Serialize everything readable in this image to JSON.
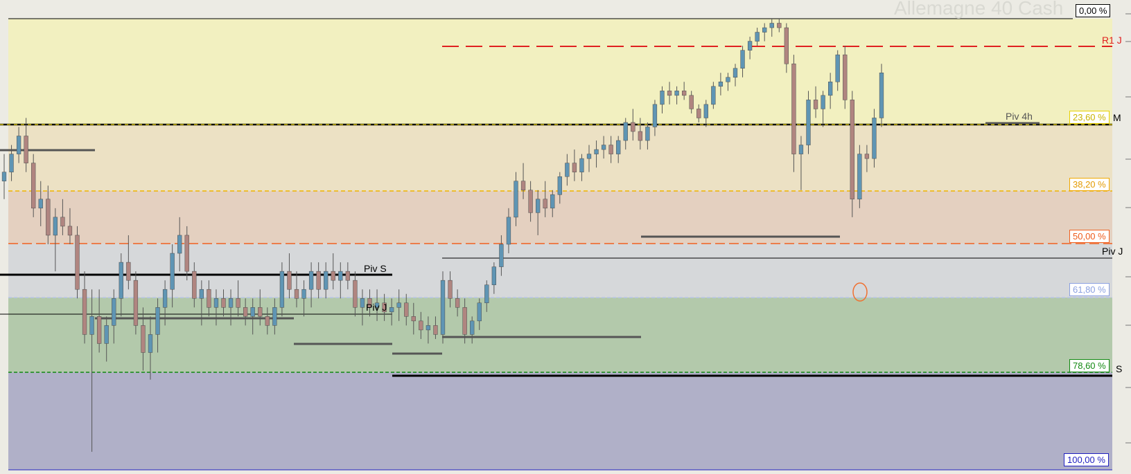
{
  "title": "Allemagne 40 Cash",
  "fib_levels": [
    {
      "label": "0,00 %",
      "color": "#000000"
    },
    {
      "label": "23,60 %",
      "color": "#e8d000"
    },
    {
      "label": "38,20 %",
      "color": "#f0a800"
    },
    {
      "label": "50,00 %",
      "color": "#f06020"
    },
    {
      "label": "61,80 %",
      "color": "#8aa0e0"
    },
    {
      "label": "78,60 %",
      "color": "#118811"
    },
    {
      "label": "100,00 %",
      "color": "#2020c0"
    }
  ],
  "pivot_labels": {
    "r1j": "R1 J",
    "m": "M",
    "piv4h": "Piv 4h",
    "pivj_right": "Piv J",
    "s": "S",
    "pivs": "Piv S",
    "pivj_left": "Piv J"
  },
  "colors": {
    "zone_0_23": "#f2f0c0",
    "zone_23_38": "#ece1c4",
    "zone_38_50": "#e4d0c0",
    "zone_50_61": "#d6d8da",
    "zone_61_78": "#b3c9ab",
    "zone_78_100": "#b0b0c8",
    "bull": "#5f95b4",
    "bear": "#b08580",
    "r1_line": "#e02020",
    "highlight": "#f07030"
  },
  "chart_data": {
    "type": "candlestick",
    "title": "Allemagne 40 Cash",
    "candles": [
      [
        0.64,
        0.7,
        0.6,
        0.66
      ],
      [
        0.66,
        0.72,
        0.64,
        0.7
      ],
      [
        0.7,
        0.76,
        0.68,
        0.74
      ],
      [
        0.74,
        0.78,
        0.66,
        0.68
      ],
      [
        0.68,
        0.7,
        0.56,
        0.58
      ],
      [
        0.58,
        0.64,
        0.54,
        0.6
      ],
      [
        0.6,
        0.63,
        0.5,
        0.52
      ],
      [
        0.52,
        0.58,
        0.44,
        0.56
      ],
      [
        0.56,
        0.6,
        0.52,
        0.54
      ],
      [
        0.54,
        0.58,
        0.5,
        0.52
      ],
      [
        0.52,
        0.54,
        0.38,
        0.4
      ],
      [
        0.4,
        0.44,
        0.28,
        0.3
      ],
      [
        0.3,
        0.4,
        0.04,
        0.34
      ],
      [
        0.34,
        0.4,
        0.26,
        0.28
      ],
      [
        0.28,
        0.34,
        0.24,
        0.32
      ],
      [
        0.32,
        0.4,
        0.28,
        0.38
      ],
      [
        0.38,
        0.48,
        0.34,
        0.46
      ],
      [
        0.46,
        0.52,
        0.4,
        0.42
      ],
      [
        0.42,
        0.44,
        0.3,
        0.32
      ],
      [
        0.32,
        0.36,
        0.22,
        0.26
      ],
      [
        0.26,
        0.34,
        0.2,
        0.3
      ],
      [
        0.3,
        0.38,
        0.26,
        0.36
      ],
      [
        0.36,
        0.42,
        0.32,
        0.4
      ],
      [
        0.4,
        0.5,
        0.36,
        0.48
      ],
      [
        0.48,
        0.56,
        0.44,
        0.52
      ],
      [
        0.52,
        0.54,
        0.42,
        0.44
      ],
      [
        0.44,
        0.46,
        0.36,
        0.38
      ],
      [
        0.38,
        0.42,
        0.32,
        0.4
      ],
      [
        0.4,
        0.42,
        0.34,
        0.36
      ],
      [
        0.36,
        0.4,
        0.32,
        0.38
      ],
      [
        0.38,
        0.4,
        0.34,
        0.36
      ],
      [
        0.36,
        0.4,
        0.32,
        0.38
      ],
      [
        0.38,
        0.42,
        0.34,
        0.36
      ],
      [
        0.36,
        0.38,
        0.32,
        0.34
      ],
      [
        0.34,
        0.38,
        0.3,
        0.36
      ],
      [
        0.36,
        0.4,
        0.32,
        0.34
      ],
      [
        0.34,
        0.36,
        0.3,
        0.32
      ],
      [
        0.32,
        0.38,
        0.3,
        0.36
      ],
      [
        0.36,
        0.46,
        0.34,
        0.44
      ],
      [
        0.44,
        0.48,
        0.38,
        0.4
      ],
      [
        0.4,
        0.44,
        0.36,
        0.38
      ],
      [
        0.38,
        0.42,
        0.34,
        0.4
      ],
      [
        0.4,
        0.46,
        0.36,
        0.44
      ],
      [
        0.44,
        0.46,
        0.38,
        0.4
      ],
      [
        0.4,
        0.46,
        0.38,
        0.44
      ],
      [
        0.44,
        0.48,
        0.4,
        0.42
      ],
      [
        0.42,
        0.46,
        0.38,
        0.44
      ],
      [
        0.44,
        0.46,
        0.4,
        0.42
      ],
      [
        0.42,
        0.44,
        0.34,
        0.36
      ],
      [
        0.36,
        0.4,
        0.32,
        0.38
      ],
      [
        0.38,
        0.4,
        0.34,
        0.36
      ],
      [
        0.36,
        0.4,
        0.33,
        0.37
      ],
      [
        0.37,
        0.39,
        0.33,
        0.35
      ],
      [
        0.35,
        0.38,
        0.32,
        0.36
      ],
      [
        0.36,
        0.4,
        0.33,
        0.37
      ],
      [
        0.37,
        0.39,
        0.32,
        0.34
      ],
      [
        0.34,
        0.37,
        0.3,
        0.33
      ],
      [
        0.33,
        0.35,
        0.29,
        0.31
      ],
      [
        0.31,
        0.34,
        0.28,
        0.32
      ],
      [
        0.32,
        0.34,
        0.29,
        0.3
      ],
      [
        0.3,
        0.44,
        0.28,
        0.42
      ],
      [
        0.42,
        0.44,
        0.36,
        0.38
      ],
      [
        0.38,
        0.4,
        0.34,
        0.36
      ],
      [
        0.36,
        0.38,
        0.28,
        0.3
      ],
      [
        0.3,
        0.34,
        0.28,
        0.33
      ],
      [
        0.33,
        0.38,
        0.31,
        0.37
      ],
      [
        0.37,
        0.42,
        0.35,
        0.41
      ],
      [
        0.41,
        0.46,
        0.39,
        0.45
      ],
      [
        0.45,
        0.52,
        0.43,
        0.5
      ],
      [
        0.5,
        0.58,
        0.48,
        0.56
      ],
      [
        0.56,
        0.66,
        0.54,
        0.64
      ],
      [
        0.64,
        0.68,
        0.6,
        0.62
      ],
      [
        0.62,
        0.64,
        0.55,
        0.57
      ],
      [
        0.57,
        0.62,
        0.52,
        0.6
      ],
      [
        0.6,
        0.64,
        0.56,
        0.58
      ],
      [
        0.58,
        0.62,
        0.56,
        0.61
      ],
      [
        0.61,
        0.66,
        0.59,
        0.65
      ],
      [
        0.65,
        0.7,
        0.63,
        0.68
      ],
      [
        0.68,
        0.71,
        0.64,
        0.66
      ],
      [
        0.66,
        0.7,
        0.64,
        0.69
      ],
      [
        0.69,
        0.72,
        0.66,
        0.7
      ],
      [
        0.7,
        0.73,
        0.67,
        0.71
      ],
      [
        0.71,
        0.74,
        0.69,
        0.72
      ],
      [
        0.72,
        0.74,
        0.68,
        0.7
      ],
      [
        0.7,
        0.74,
        0.68,
        0.73
      ],
      [
        0.73,
        0.78,
        0.71,
        0.77
      ],
      [
        0.77,
        0.8,
        0.73,
        0.75
      ],
      [
        0.75,
        0.78,
        0.71,
        0.73
      ],
      [
        0.73,
        0.77,
        0.71,
        0.76
      ],
      [
        0.76,
        0.82,
        0.74,
        0.81
      ],
      [
        0.81,
        0.85,
        0.79,
        0.84
      ],
      [
        0.84,
        0.86,
        0.81,
        0.83
      ],
      [
        0.83,
        0.85,
        0.81,
        0.84
      ],
      [
        0.84,
        0.86,
        0.82,
        0.83
      ],
      [
        0.83,
        0.84,
        0.79,
        0.8
      ],
      [
        0.8,
        0.81,
        0.77,
        0.78
      ],
      [
        0.78,
        0.82,
        0.76,
        0.81
      ],
      [
        0.81,
        0.86,
        0.8,
        0.85
      ],
      [
        0.85,
        0.88,
        0.83,
        0.86
      ],
      [
        0.86,
        0.88,
        0.84,
        0.87
      ],
      [
        0.87,
        0.9,
        0.85,
        0.89
      ],
      [
        0.89,
        0.94,
        0.87,
        0.93
      ],
      [
        0.93,
        0.96,
        0.91,
        0.95
      ],
      [
        0.95,
        0.98,
        0.94,
        0.97
      ],
      [
        0.97,
        0.99,
        0.95,
        0.98
      ],
      [
        0.98,
        1.0,
        0.96,
        0.99
      ],
      [
        0.99,
        1.0,
        0.97,
        0.98
      ],
      [
        0.98,
        0.99,
        0.88,
        0.9
      ],
      [
        0.9,
        0.92,
        0.66,
        0.7
      ],
      [
        0.7,
        0.74,
        0.62,
        0.72
      ],
      [
        0.72,
        0.84,
        0.7,
        0.82
      ],
      [
        0.82,
        0.85,
        0.78,
        0.8
      ],
      [
        0.8,
        0.84,
        0.76,
        0.83
      ],
      [
        0.83,
        0.88,
        0.8,
        0.86
      ],
      [
        0.86,
        0.93,
        0.84,
        0.92
      ],
      [
        0.92,
        0.94,
        0.8,
        0.82
      ],
      [
        0.82,
        0.84,
        0.56,
        0.6
      ],
      [
        0.6,
        0.72,
        0.58,
        0.7
      ],
      [
        0.7,
        0.72,
        0.66,
        0.69
      ],
      [
        0.69,
        0.8,
        0.67,
        0.78
      ],
      [
        0.78,
        0.9,
        0.76,
        0.88
      ]
    ]
  }
}
